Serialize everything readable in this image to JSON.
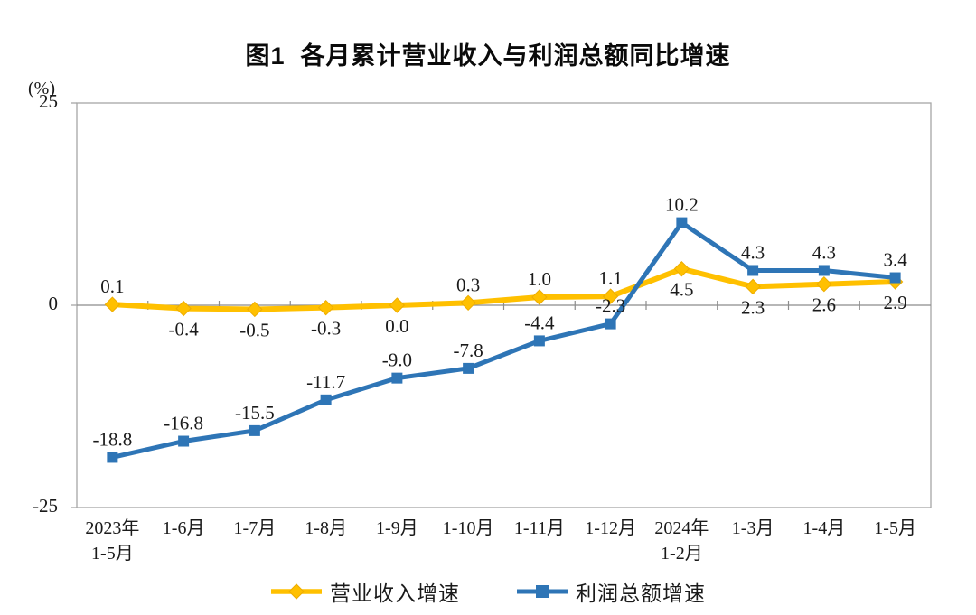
{
  "chart_data": {
    "type": "line",
    "title": "图1  各月累计营业收入与利润总额同比增速",
    "unit_label": "(%)",
    "categories": [
      "2023年\n1-5月",
      "1-6月",
      "1-7月",
      "1-8月",
      "1-9月",
      "1-10月",
      "1-11月",
      "1-12月",
      "2024年\n1-2月",
      "1-3月",
      "1-4月",
      "1-5月"
    ],
    "series": [
      {
        "name": "营业收入增速",
        "color": "#FFC000",
        "marker": "diamond",
        "values": [
          0.1,
          -0.4,
          -0.5,
          -0.3,
          0.0,
          0.3,
          1.0,
          1.1,
          4.5,
          2.3,
          2.6,
          2.9
        ],
        "label_side": [
          "above",
          "below",
          "below",
          "below",
          "below",
          "above",
          "above",
          "above",
          "below",
          "below",
          "below",
          "below"
        ]
      },
      {
        "name": "利润总额增速",
        "color": "#2E75B6",
        "marker": "square",
        "values": [
          -18.8,
          -16.8,
          -15.5,
          -11.7,
          -9.0,
          -7.8,
          -4.4,
          -2.3,
          10.2,
          4.3,
          4.3,
          3.4
        ],
        "label_side": [
          "above",
          "above",
          "above",
          "above",
          "above",
          "above",
          "above",
          "above",
          "above",
          "above",
          "above",
          "above"
        ]
      }
    ],
    "ylim": [
      -25,
      25
    ],
    "yticks": [
      25,
      0,
      -25
    ],
    "grid": false,
    "legend_position": "bottom",
    "axis_color": "#a6a6a6",
    "text_color": "#1a1a1a"
  }
}
